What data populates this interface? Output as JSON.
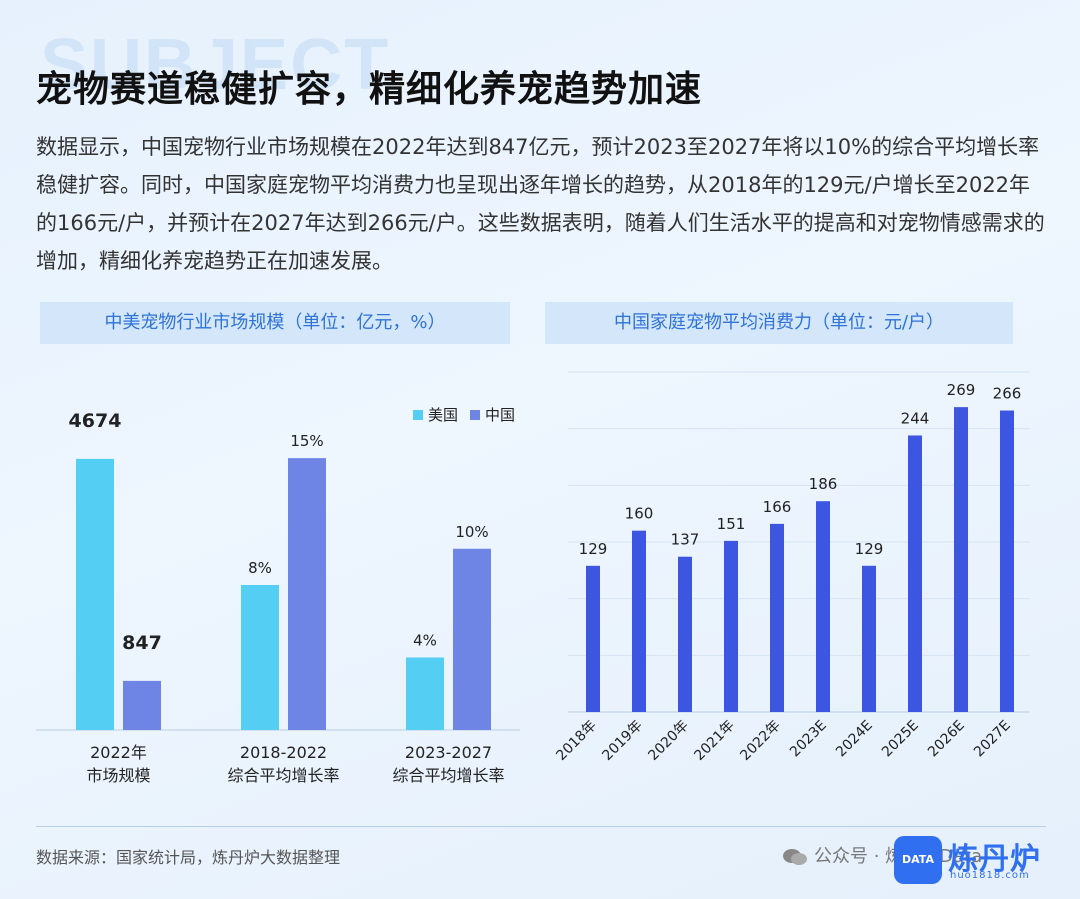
{
  "background_word": "SUBJECT",
  "title": "宠物赛道稳健扩容，精细化养宠趋势加速",
  "intro": "数据显示，中国宠物行业市场规模在2022年达到847亿元，预计2023至2027年将以10%的综合平均增长率稳健扩容。同时，中国家庭宠物平均消费力也呈现出逐年增长的趋势，从2018年的129元/户增长至2022年的166元/户，并预计在2027年达到266元/户。这些数据表明，随着人们生活水平的提高和对宠物情感需求的增加，精细化养宠趋势正在加速发展。",
  "colors": {
    "us": "#55cef4",
    "cn": "#6f85e6",
    "consume": "#3d56e2",
    "accent": "#2f72d9"
  },
  "chart_data": [
    {
      "type": "bar",
      "title": "中美宠物行业市场规模（单位：亿元，%）",
      "legend": [
        "美国",
        "中国"
      ],
      "legend_position": "top-right",
      "groups": [
        {
          "label_lines": [
            "2022年",
            "市场规模"
          ],
          "values": [
            4674,
            847
          ],
          "labels": [
            "4674",
            "847"
          ],
          "ymax": 5000
        },
        {
          "label_lines": [
            "2018-2022",
            "综合平均增长率"
          ],
          "values": [
            8,
            15
          ],
          "labels": [
            "8%",
            "15%"
          ],
          "ymax": 16
        },
        {
          "label_lines": [
            "2023-2027",
            "综合平均增长率"
          ],
          "values": [
            4,
            10
          ],
          "labels": [
            "4%",
            "10%"
          ],
          "ymax": 16
        }
      ],
      "series": [
        {
          "name": "美国"
        },
        {
          "name": "中国"
        }
      ]
    },
    {
      "type": "bar",
      "title": "中国家庭宠物平均消费力（单位：元/户）",
      "categories": [
        "2018年",
        "2019年",
        "2020年",
        "2021年",
        "2022年",
        "2023E",
        "2024E",
        "2025E",
        "2026E",
        "2027E"
      ],
      "values": [
        129,
        160,
        137,
        151,
        166,
        186,
        129,
        244,
        269,
        266
      ],
      "ylim": [
        0,
        300
      ],
      "grid": true
    }
  ],
  "footer": {
    "source": "数据来源：国家统计局，炼丹炉大数据整理",
    "wechat": "公众号 · 炼丹炉Data",
    "logo_text": "DATA",
    "brand": "炼丹炉",
    "url": "huo1818.com"
  }
}
